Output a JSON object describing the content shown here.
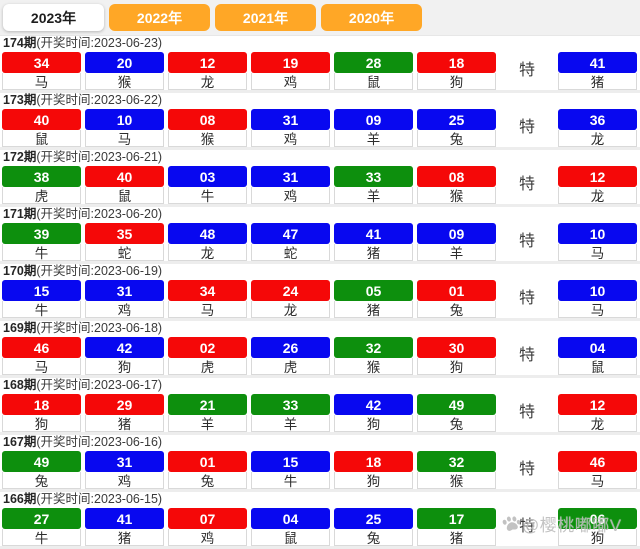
{
  "tabs": [
    {
      "label": "2023年",
      "active": true
    },
    {
      "label": "2022年",
      "active": false
    },
    {
      "label": "2021年",
      "active": false
    },
    {
      "label": "2020年",
      "active": false
    }
  ],
  "special_label": "特",
  "colors": {
    "red": "#f50808",
    "blue": "#0808f0",
    "green": "#0d8f0d",
    "tab_orange": "#ffa726"
  },
  "watermark": {
    "icon": "paw-icon",
    "text": "@樱桃嘟嘟V"
  },
  "rows": [
    {
      "period": "174期",
      "info": "(开奖时间:2023-06-23)",
      "balls": [
        {
          "num": "34",
          "zodiac": "马",
          "color": "red"
        },
        {
          "num": "20",
          "zodiac": "猴",
          "color": "blue"
        },
        {
          "num": "12",
          "zodiac": "龙",
          "color": "red"
        },
        {
          "num": "19",
          "zodiac": "鸡",
          "color": "red"
        },
        {
          "num": "28",
          "zodiac": "鼠",
          "color": "green"
        },
        {
          "num": "18",
          "zodiac": "狗",
          "color": "red"
        }
      ],
      "special": {
        "num": "41",
        "zodiac": "猪",
        "color": "blue"
      }
    },
    {
      "period": "173期",
      "info": "(开奖时间:2023-06-22)",
      "balls": [
        {
          "num": "40",
          "zodiac": "鼠",
          "color": "red"
        },
        {
          "num": "10",
          "zodiac": "马",
          "color": "blue"
        },
        {
          "num": "08",
          "zodiac": "猴",
          "color": "red"
        },
        {
          "num": "31",
          "zodiac": "鸡",
          "color": "blue"
        },
        {
          "num": "09",
          "zodiac": "羊",
          "color": "blue"
        },
        {
          "num": "25",
          "zodiac": "兔",
          "color": "blue"
        }
      ],
      "special": {
        "num": "36",
        "zodiac": "龙",
        "color": "blue"
      }
    },
    {
      "period": "172期",
      "info": "(开奖时间:2023-06-21)",
      "balls": [
        {
          "num": "38",
          "zodiac": "虎",
          "color": "green"
        },
        {
          "num": "40",
          "zodiac": "鼠",
          "color": "red"
        },
        {
          "num": "03",
          "zodiac": "牛",
          "color": "blue"
        },
        {
          "num": "31",
          "zodiac": "鸡",
          "color": "blue"
        },
        {
          "num": "33",
          "zodiac": "羊",
          "color": "green"
        },
        {
          "num": "08",
          "zodiac": "猴",
          "color": "red"
        }
      ],
      "special": {
        "num": "12",
        "zodiac": "龙",
        "color": "red"
      }
    },
    {
      "period": "171期",
      "info": "(开奖时间:2023-06-20)",
      "balls": [
        {
          "num": "39",
          "zodiac": "牛",
          "color": "green"
        },
        {
          "num": "35",
          "zodiac": "蛇",
          "color": "red"
        },
        {
          "num": "48",
          "zodiac": "龙",
          "color": "blue"
        },
        {
          "num": "47",
          "zodiac": "蛇",
          "color": "blue"
        },
        {
          "num": "41",
          "zodiac": "猪",
          "color": "blue"
        },
        {
          "num": "09",
          "zodiac": "羊",
          "color": "blue"
        }
      ],
      "special": {
        "num": "10",
        "zodiac": "马",
        "color": "blue"
      }
    },
    {
      "period": "170期",
      "info": "(开奖时间:2023-06-19)",
      "balls": [
        {
          "num": "15",
          "zodiac": "牛",
          "color": "blue"
        },
        {
          "num": "31",
          "zodiac": "鸡",
          "color": "blue"
        },
        {
          "num": "34",
          "zodiac": "马",
          "color": "red"
        },
        {
          "num": "24",
          "zodiac": "龙",
          "color": "red"
        },
        {
          "num": "05",
          "zodiac": "猪",
          "color": "green"
        },
        {
          "num": "01",
          "zodiac": "兔",
          "color": "red"
        }
      ],
      "special": {
        "num": "10",
        "zodiac": "马",
        "color": "blue"
      }
    },
    {
      "period": "169期",
      "info": "(开奖时间:2023-06-18)",
      "balls": [
        {
          "num": "46",
          "zodiac": "马",
          "color": "red"
        },
        {
          "num": "42",
          "zodiac": "狗",
          "color": "blue"
        },
        {
          "num": "02",
          "zodiac": "虎",
          "color": "red"
        },
        {
          "num": "26",
          "zodiac": "虎",
          "color": "blue"
        },
        {
          "num": "32",
          "zodiac": "猴",
          "color": "green"
        },
        {
          "num": "30",
          "zodiac": "狗",
          "color": "red"
        }
      ],
      "special": {
        "num": "04",
        "zodiac": "鼠",
        "color": "blue"
      }
    },
    {
      "period": "168期",
      "info": "(开奖时间:2023-06-17)",
      "balls": [
        {
          "num": "18",
          "zodiac": "狗",
          "color": "red"
        },
        {
          "num": "29",
          "zodiac": "猪",
          "color": "red"
        },
        {
          "num": "21",
          "zodiac": "羊",
          "color": "green"
        },
        {
          "num": "33",
          "zodiac": "羊",
          "color": "green"
        },
        {
          "num": "42",
          "zodiac": "狗",
          "color": "blue"
        },
        {
          "num": "49",
          "zodiac": "兔",
          "color": "green"
        }
      ],
      "special": {
        "num": "12",
        "zodiac": "龙",
        "color": "red"
      }
    },
    {
      "period": "167期",
      "info": "(开奖时间:2023-06-16)",
      "balls": [
        {
          "num": "49",
          "zodiac": "兔",
          "color": "green"
        },
        {
          "num": "31",
          "zodiac": "鸡",
          "color": "blue"
        },
        {
          "num": "01",
          "zodiac": "兔",
          "color": "red"
        },
        {
          "num": "15",
          "zodiac": "牛",
          "color": "blue"
        },
        {
          "num": "18",
          "zodiac": "狗",
          "color": "red"
        },
        {
          "num": "32",
          "zodiac": "猴",
          "color": "green"
        }
      ],
      "special": {
        "num": "46",
        "zodiac": "马",
        "color": "red"
      }
    },
    {
      "period": "166期",
      "info": "(开奖时间:2023-06-15)",
      "balls": [
        {
          "num": "27",
          "zodiac": "牛",
          "color": "green"
        },
        {
          "num": "41",
          "zodiac": "猪",
          "color": "blue"
        },
        {
          "num": "07",
          "zodiac": "鸡",
          "color": "red"
        },
        {
          "num": "04",
          "zodiac": "鼠",
          "color": "blue"
        },
        {
          "num": "25",
          "zodiac": "兔",
          "color": "blue"
        },
        {
          "num": "17",
          "zodiac": "猪",
          "color": "green"
        }
      ],
      "special": {
        "num": "06",
        "zodiac": "狗",
        "color": "green"
      }
    }
  ]
}
